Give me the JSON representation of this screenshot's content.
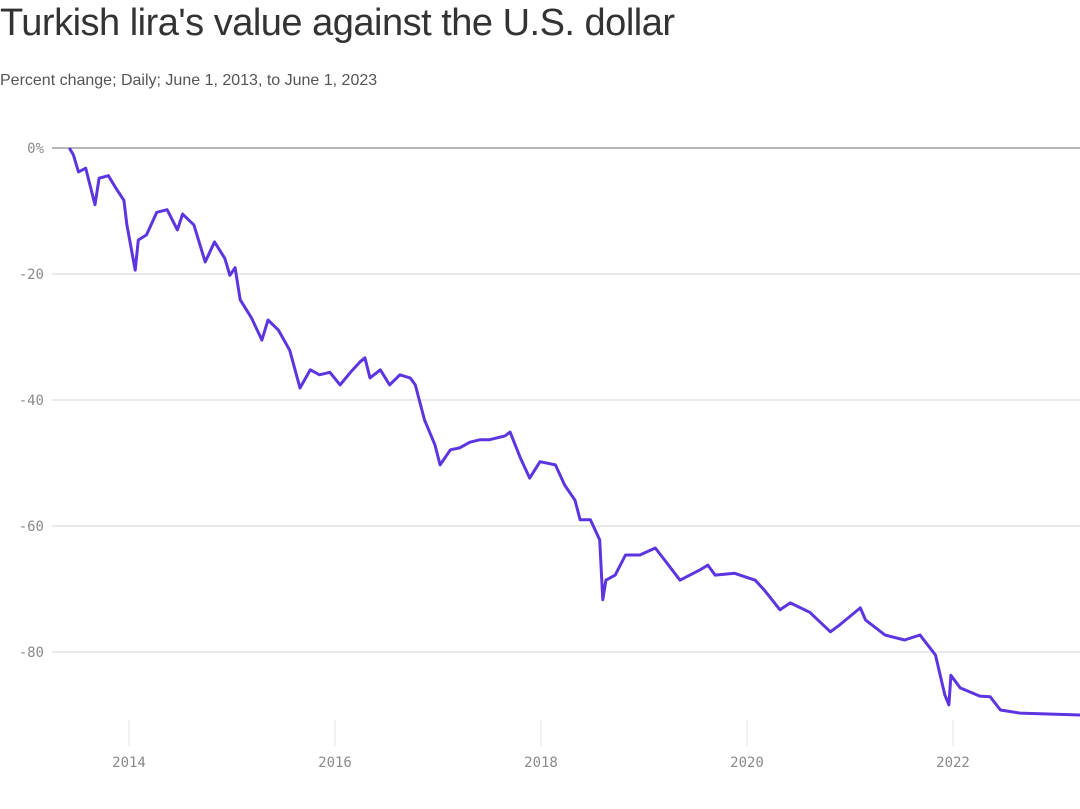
{
  "chart_data": {
    "type": "line",
    "title": "Turkish lira's value against the U.S. dollar",
    "subtitle": "Percent change; Daily; June 1, 2013, to June 1, 2023",
    "xlabel": "",
    "ylabel": "",
    "xlim": [
      2013.42,
      2023.42
    ],
    "ylim": [
      -92,
      0
    ],
    "grid": true,
    "color": "#5c35e0",
    "y_ticks": [
      {
        "value": 0,
        "label": "0%"
      },
      {
        "value": -20,
        "label": "-20"
      },
      {
        "value": -40,
        "label": "-40"
      },
      {
        "value": -60,
        "label": "-60"
      },
      {
        "value": -80,
        "label": "-80"
      }
    ],
    "x_ticks": [
      {
        "value": 2014,
        "label": "2014"
      },
      {
        "value": 2016,
        "label": "2016"
      },
      {
        "value": 2018,
        "label": "2018"
      },
      {
        "value": 2020,
        "label": "2020"
      },
      {
        "value": 2022,
        "label": "2022"
      }
    ],
    "series": [
      {
        "x": [
          2013.42,
          2013.46,
          2013.51,
          2013.58,
          2013.67,
          2013.71,
          2013.8,
          2013.87,
          2013.95,
          2013.98,
          2014.06,
          2014.09,
          2014.17,
          2014.27,
          2014.37,
          2014.47,
          2014.52,
          2014.63,
          2014.74,
          2014.83,
          2014.93,
          2014.98,
          2015.03,
          2015.08,
          2015.19,
          2015.29,
          2015.35,
          2015.45,
          2015.56,
          2015.66,
          2015.76,
          2015.85,
          2015.95,
          2016.05,
          2016.15,
          2016.24,
          2016.29,
          2016.34,
          2016.44,
          2016.53,
          2016.63,
          2016.73,
          2016.78,
          2016.87,
          2016.97,
          2017.02,
          2017.12,
          2017.21,
          2017.31,
          2017.41,
          2017.5,
          2017.65,
          2017.7,
          2017.8,
          2017.89,
          2017.99,
          2018.14,
          2018.23,
          2018.33,
          2018.38,
          2018.48,
          2018.57,
          2018.6,
          2018.63,
          2018.72,
          2018.82,
          2018.96,
          2019.11,
          2019.2,
          2019.35,
          2019.54,
          2019.62,
          2019.69,
          2019.88,
          2020.08,
          2020.17,
          2020.32,
          2020.42,
          2020.61,
          2020.81,
          2020.9,
          2021.1,
          2021.15,
          2021.34,
          2021.53,
          2021.68,
          2021.83,
          2021.92,
          2021.96,
          2021.98,
          2022.07,
          2022.26,
          2022.36,
          2022.46,
          2022.65,
          2023.24,
          2023.42
        ],
        "y": [
          0,
          -1.1,
          -3.8,
          -3.2,
          -9.0,
          -4.8,
          -4.4,
          -6.3,
          -8.3,
          -12.2,
          -19.4,
          -14.6,
          -13.8,
          -10.2,
          -9.8,
          -13.0,
          -10.5,
          -12.2,
          -18.1,
          -14.9,
          -17.5,
          -20.2,
          -19.0,
          -24.1,
          -27.0,
          -30.5,
          -27.3,
          -28.9,
          -32.1,
          -38.1,
          -35.2,
          -36.0,
          -35.6,
          -37.6,
          -35.6,
          -34.0,
          -33.3,
          -36.5,
          -35.2,
          -37.6,
          -36.0,
          -36.5,
          -37.6,
          -43.2,
          -47.1,
          -50.3,
          -47.9,
          -47.6,
          -46.7,
          -46.3,
          -46.3,
          -45.7,
          -45.1,
          -49.2,
          -52.4,
          -49.8,
          -50.3,
          -53.5,
          -55.9,
          -59.0,
          -59.0,
          -62.2,
          -71.7,
          -68.6,
          -67.8,
          -64.6,
          -64.6,
          -63.5,
          -65.4,
          -68.6,
          -67.0,
          -66.2,
          -67.8,
          -67.5,
          -68.6,
          -70.2,
          -73.3,
          -72.2,
          -73.7,
          -76.8,
          -75.7,
          -73.0,
          -74.9,
          -77.3,
          -78.1,
          -77.3,
          -80.5,
          -86.8,
          -88.4,
          -83.7,
          -85.7,
          -87.0,
          -87.1,
          -89.2,
          -89.7,
          -90.0,
          -90.2
        ]
      }
    ]
  }
}
